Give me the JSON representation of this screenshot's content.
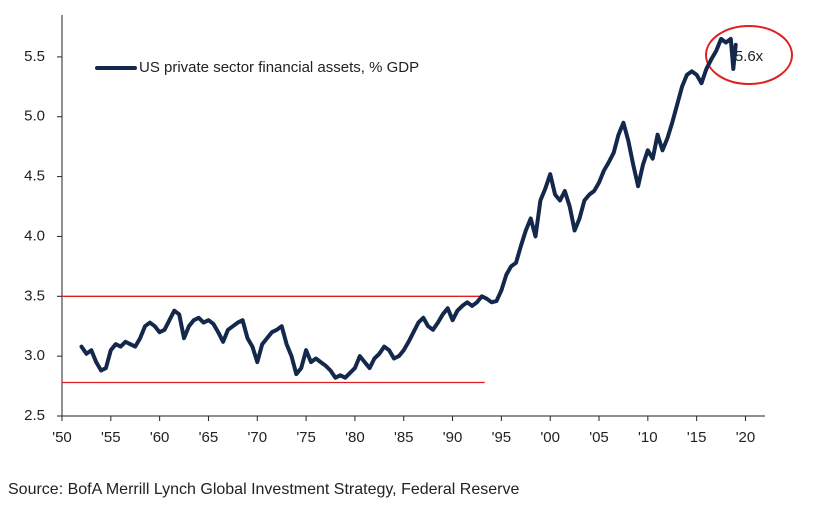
{
  "chart_data": {
    "type": "line",
    "series": [
      {
        "name": "US private sector financial assets, % GDP",
        "color": "#14284b",
        "x": [
          1952,
          1952.5,
          1953,
          1953.5,
          1954,
          1954.5,
          1955,
          1955.5,
          1956,
          1956.5,
          1957,
          1957.5,
          1958,
          1958.5,
          1959,
          1959.5,
          1960,
          1960.5,
          1961,
          1961.5,
          1962,
          1962.5,
          1963,
          1963.5,
          1964,
          1964.5,
          1965,
          1965.5,
          1966,
          1966.5,
          1967,
          1967.5,
          1968,
          1968.5,
          1969,
          1969.5,
          1970,
          1970.5,
          1971,
          1971.5,
          1972,
          1972.5,
          1973,
          1973.5,
          1974,
          1974.5,
          1975,
          1975.5,
          1976,
          1976.5,
          1977,
          1977.5,
          1978,
          1978.5,
          1979,
          1979.5,
          1980,
          1980.5,
          1981,
          1981.5,
          1982,
          1982.5,
          1983,
          1983.5,
          1984,
          1984.5,
          1985,
          1985.5,
          1986,
          1986.5,
          1987,
          1987.5,
          1988,
          1988.5,
          1989,
          1989.5,
          1990,
          1990.5,
          1991,
          1991.5,
          1992,
          1992.5,
          1993,
          1993.5,
          1994,
          1994.5,
          1995,
          1995.5,
          1996,
          1996.5,
          1997,
          1997.5,
          1998,
          1998.5,
          1999,
          1999.5,
          2000,
          2000.5,
          2001,
          2001.5,
          2002,
          2002.5,
          2003,
          2003.5,
          2004,
          2004.5,
          2005,
          2005.5,
          2006,
          2006.5,
          2007,
          2007.5,
          2008,
          2008.5,
          2009,
          2009.5,
          2010,
          2010.5,
          2011,
          2011.5,
          2012,
          2012.5,
          2013,
          2013.5,
          2014,
          2014.5,
          2015,
          2015.5,
          2016,
          2016.5,
          2017,
          2017.5,
          2018,
          2018.5,
          2018.75,
          2019
        ],
        "values": [
          3.08,
          3.02,
          3.05,
          2.95,
          2.88,
          2.9,
          3.05,
          3.1,
          3.08,
          3.12,
          3.1,
          3.08,
          3.15,
          3.25,
          3.28,
          3.25,
          3.2,
          3.22,
          3.3,
          3.38,
          3.35,
          3.15,
          3.25,
          3.3,
          3.32,
          3.28,
          3.3,
          3.27,
          3.2,
          3.12,
          3.22,
          3.25,
          3.28,
          3.3,
          3.15,
          3.08,
          2.95,
          3.1,
          3.15,
          3.2,
          3.22,
          3.25,
          3.1,
          3.0,
          2.85,
          2.9,
          3.05,
          2.95,
          2.98,
          2.95,
          2.92,
          2.88,
          2.82,
          2.84,
          2.82,
          2.86,
          2.9,
          3.0,
          2.95,
          2.9,
          2.98,
          3.02,
          3.08,
          3.05,
          2.98,
          3.0,
          3.05,
          3.12,
          3.2,
          3.28,
          3.32,
          3.25,
          3.22,
          3.28,
          3.35,
          3.4,
          3.3,
          3.38,
          3.42,
          3.45,
          3.42,
          3.45,
          3.5,
          3.48,
          3.45,
          3.46,
          3.55,
          3.68,
          3.75,
          3.78,
          3.92,
          4.05,
          4.15,
          4.0,
          4.3,
          4.4,
          4.52,
          4.35,
          4.3,
          4.38,
          4.25,
          4.05,
          4.15,
          4.3,
          4.35,
          4.38,
          4.45,
          4.55,
          4.62,
          4.7,
          4.85,
          4.95,
          4.8,
          4.6,
          4.42,
          4.6,
          4.72,
          4.65,
          4.85,
          4.72,
          4.82,
          4.95,
          5.1,
          5.25,
          5.35,
          5.38,
          5.35,
          5.28,
          5.4,
          5.48,
          5.55,
          5.65,
          5.62,
          5.65,
          5.4,
          5.6
        ]
      }
    ],
    "xlim": [
      1950,
      2022
    ],
    "xticks": [
      {
        "value": 1950,
        "label": "'50"
      },
      {
        "value": 1955,
        "label": "'55"
      },
      {
        "value": 1960,
        "label": "'60"
      },
      {
        "value": 1965,
        "label": "'65"
      },
      {
        "value": 1970,
        "label": "'70"
      },
      {
        "value": 1975,
        "label": "'75"
      },
      {
        "value": 1980,
        "label": "'80"
      },
      {
        "value": 1985,
        "label": "'85"
      },
      {
        "value": 1990,
        "label": "'90"
      },
      {
        "value": 1995,
        "label": "'95"
      },
      {
        "value": 2000,
        "label": "'00"
      },
      {
        "value": 2005,
        "label": "'05"
      },
      {
        "value": 2010,
        "label": "'10"
      },
      {
        "value": 2015,
        "label": "'15"
      },
      {
        "value": 2020,
        "label": "'20"
      }
    ],
    "ylim": [
      2.5,
      5.85
    ],
    "yticks": [
      2.5,
      {
        "value": 3,
        "label": "3.0"
      },
      3.5,
      {
        "value": 4,
        "label": "4.0"
      },
      4.5,
      {
        "value": 5,
        "label": "5.0"
      },
      5.5
    ],
    "reference_lines": [
      {
        "y": 3.5,
        "x": [
          1950,
          1993.3
        ],
        "color": "#e02020"
      },
      {
        "y": 2.78,
        "x": [
          1950,
          1993.3
        ],
        "color": "#e02020"
      }
    ],
    "annotation": "5.6x",
    "source": "Source:  BofA Merrill Lynch Global Investment Strategy, Federal Reserve"
  }
}
